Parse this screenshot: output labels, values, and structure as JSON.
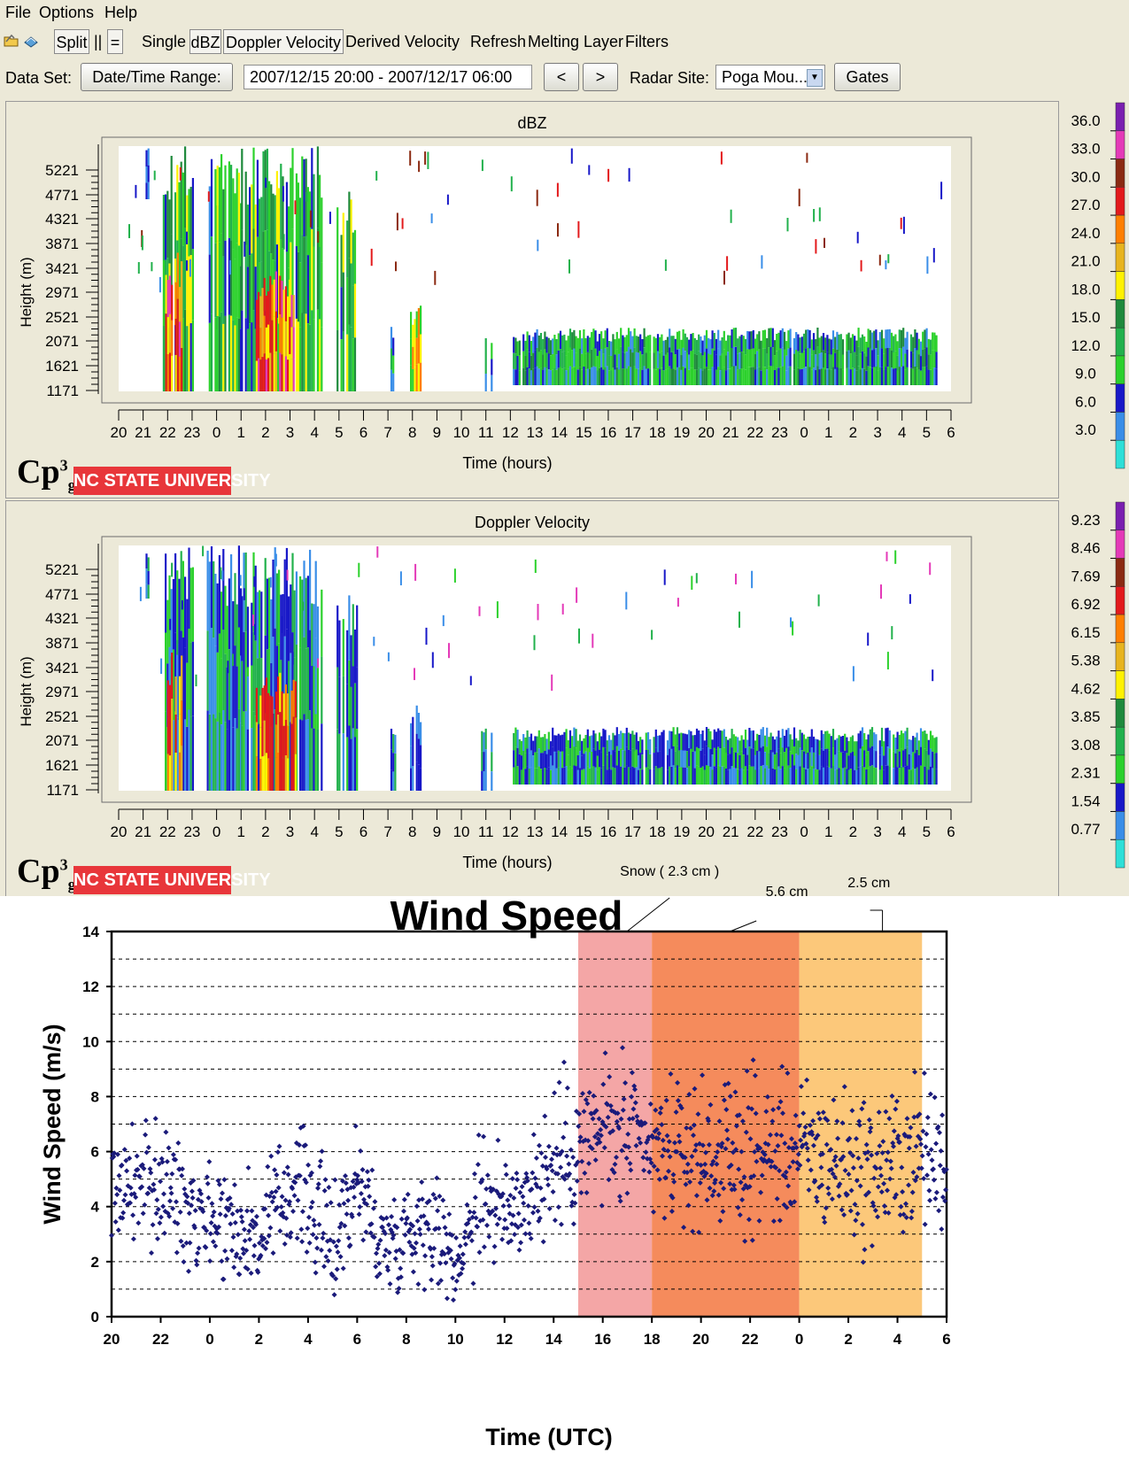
{
  "menu": [
    "File",
    "Options",
    "Help"
  ],
  "toolbar": {
    "split": "Split",
    "pause": "||",
    "equal": "=",
    "single": "Single",
    "dbz": "dBZ",
    "doppler": "Doppler Velocity",
    "derived": "Derived Velocity",
    "refresh": "Refresh",
    "melting": "Melting Layer",
    "filters": "Filters",
    "icons": [
      "open-folder-icon",
      "book-icon"
    ]
  },
  "databar": {
    "dataset_label": "Data Set:",
    "datetime_button": "Date/Time Range:",
    "datetime_value": "2007/12/15 20:00 - 2007/12/17 06:00",
    "prev": "<",
    "next": ">",
    "radar_label": "Radar Site:",
    "radar_value": "Poga Mou...",
    "gates": "Gates"
  },
  "panels": [
    {
      "title": "dBZ",
      "ylabel": "Height (m)",
      "xlabel": "Time (hours)",
      "yticks": [
        "5221",
        "4771",
        "4321",
        "3871",
        "3421",
        "2971",
        "2521",
        "2071",
        "1621",
        "1171"
      ],
      "xticks": [
        "20",
        "21",
        "22",
        "23",
        "0",
        "1",
        "2",
        "3",
        "4",
        "5",
        "6",
        "7",
        "8",
        "9",
        "10",
        "11",
        "12",
        "13",
        "14",
        "15",
        "16",
        "17",
        "18",
        "19",
        "20",
        "21",
        "22",
        "23",
        "0",
        "1",
        "2",
        "3",
        "4",
        "5",
        "6"
      ],
      "colorbar_labels": [
        "36.0",
        "33.0",
        "30.0",
        "27.0",
        "24.0",
        "21.0",
        "18.0",
        "15.0",
        "12.0",
        "9.0",
        "6.0",
        "3.0"
      ]
    },
    {
      "title": "Doppler Velocity",
      "ylabel": "Height (m)",
      "xlabel": "Time (hours)",
      "yticks": [
        "5221",
        "4771",
        "4321",
        "3871",
        "3421",
        "2971",
        "2521",
        "2071",
        "1621",
        "1171"
      ],
      "xticks": [
        "20",
        "21",
        "22",
        "23",
        "0",
        "1",
        "2",
        "3",
        "4",
        "5",
        "6",
        "7",
        "8",
        "9",
        "10",
        "11",
        "12",
        "13",
        "14",
        "15",
        "16",
        "17",
        "18",
        "19",
        "20",
        "21",
        "22",
        "23",
        "0",
        "1",
        "2",
        "3",
        "4",
        "5",
        "6"
      ],
      "colorbar_labels": [
        "9.23",
        "8.46",
        "7.69",
        "6.92",
        "6.15",
        "5.38",
        "4.62",
        "3.85",
        "3.08",
        "2.31",
        "1.54",
        "0.77"
      ]
    }
  ],
  "colorbar_colors": [
    "#7a1fb0",
    "#e43ab8",
    "#8b2a12",
    "#e31a1c",
    "#ff7f00",
    "#e8b41e",
    "#fff200",
    "#1f8a3c",
    "#22b14c",
    "#2cd12c",
    "#1818c8",
    "#3a8ee8",
    "#2ee0d8"
  ],
  "logos": {
    "cp3g": "Cp",
    "cp3g_sup": "3",
    "cp3g_sub": "g",
    "ncsu": "NC STATE UNIVERSITY"
  },
  "chart_data": {
    "type": "scatter",
    "title": "Wind Speed",
    "xlabel": "Time (UTC)",
    "ylabel": "Wind Speed (m/s)",
    "ylim": [
      0,
      14
    ],
    "yticks": [
      0,
      2,
      4,
      6,
      8,
      10,
      12,
      14
    ],
    "xtick_labels": [
      "20",
      "22",
      "0",
      "2",
      "4",
      "6",
      "8",
      "10",
      "12",
      "14",
      "16",
      "18",
      "20",
      "22",
      "0",
      "2",
      "4",
      "6"
    ],
    "x_range_hours": [
      20,
      54
    ],
    "grid": "dashed horizontal every 1 m/s",
    "color": "#1a1a7a",
    "bands": [
      {
        "label": "Snow ( 2.3 cm )",
        "from_hour": 39,
        "to_hour": 42,
        "color": "#f4a6a6"
      },
      {
        "label": "5.6 cm",
        "from_hour": 42,
        "to_hour": 48,
        "color": "#f58b5c"
      },
      {
        "label": "2.5 cm",
        "from_hour": 48,
        "to_hour": 53,
        "color": "#fcc87a"
      }
    ],
    "trend": [
      {
        "hour": 20,
        "mean": 4.8,
        "spread": 1.4
      },
      {
        "hour": 22,
        "mean": 4.7,
        "spread": 1.6
      },
      {
        "hour": 24,
        "mean": 3.8,
        "spread": 1.5
      },
      {
        "hour": 26,
        "mean": 2.8,
        "spread": 1.4
      },
      {
        "hour": 27.5,
        "mean": 5.0,
        "spread": 1.6
      },
      {
        "hour": 29,
        "mean": 2.6,
        "spread": 1.6
      },
      {
        "hour": 30,
        "mean": 5.0,
        "spread": 1.6
      },
      {
        "hour": 31,
        "mean": 2.6,
        "spread": 1.2
      },
      {
        "hour": 33,
        "mean": 3.6,
        "spread": 1.5
      },
      {
        "hour": 34,
        "mean": 1.8,
        "spread": 0.9
      },
      {
        "hour": 35,
        "mean": 4.6,
        "spread": 1.8
      },
      {
        "hour": 36,
        "mean": 3.6,
        "spread": 1.4
      },
      {
        "hour": 38,
        "mean": 5.5,
        "spread": 1.8
      },
      {
        "hour": 40,
        "mean": 6.8,
        "spread": 1.9
      },
      {
        "hour": 42,
        "mean": 6.0,
        "spread": 1.6
      },
      {
        "hour": 45,
        "mean": 5.8,
        "spread": 1.8
      },
      {
        "hour": 48,
        "mean": 6.0,
        "spread": 1.8
      },
      {
        "hour": 51,
        "mean": 5.2,
        "spread": 1.9
      },
      {
        "hour": 53,
        "mean": 6.0,
        "spread": 1.9
      },
      {
        "hour": 54,
        "mean": 5.5,
        "spread": 1.6
      }
    ]
  }
}
